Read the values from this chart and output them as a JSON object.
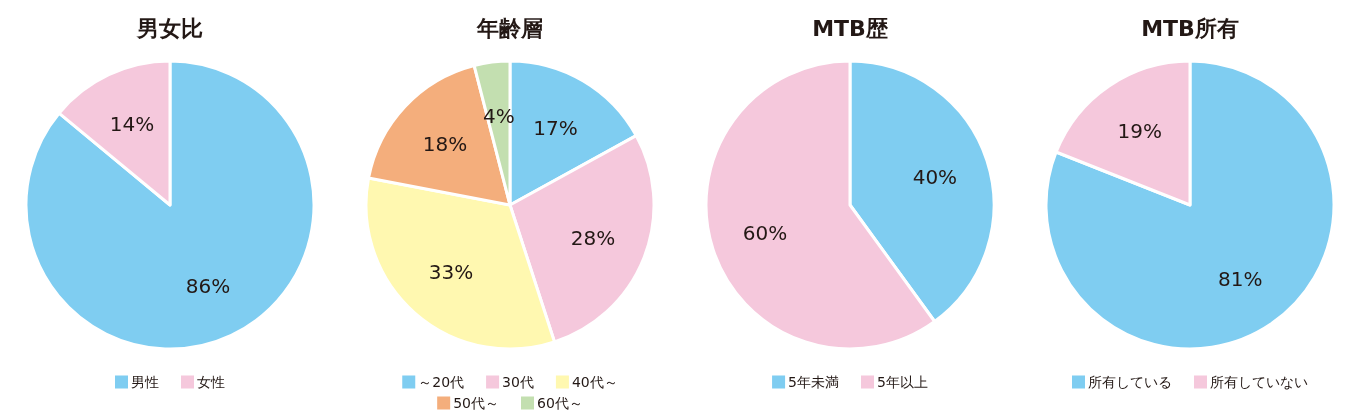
{
  "chart_data": [
    {
      "type": "pie",
      "title": "男女比",
      "categories": [
        "男性",
        "女性"
      ],
      "values": [
        86,
        14
      ],
      "value_labels": [
        "86%",
        "14%"
      ],
      "colors": [
        "#7fcdf1",
        "#f5c8dc"
      ],
      "legend": "bottom"
    },
    {
      "type": "pie",
      "title": "年齢層",
      "categories": [
        "～20代",
        "30代",
        "40代～",
        "50代～",
        "60代～"
      ],
      "values": [
        17,
        28,
        33,
        18,
        4
      ],
      "value_labels": [
        "17%",
        "28%",
        "33%",
        "18%",
        "4%"
      ],
      "colors": [
        "#7fcdf1",
        "#f5c8dc",
        "#fff8b0",
        "#f4ae7c",
        "#c3dfb0"
      ],
      "legend": "bottom"
    },
    {
      "type": "pie",
      "title": "MTB歴",
      "categories": [
        "5年未満",
        "5年以上"
      ],
      "values": [
        40,
        60
      ],
      "value_labels": [
        "40%",
        "60%"
      ],
      "colors": [
        "#7fcdf1",
        "#f5c8dc"
      ],
      "legend": "bottom"
    },
    {
      "type": "pie",
      "title": "MTB所有",
      "categories": [
        "所有している",
        "所有していない"
      ],
      "values": [
        81,
        19
      ],
      "value_labels": [
        "81%",
        "19%"
      ],
      "colors": [
        "#7fcdf1",
        "#f5c8dc"
      ],
      "legend": "bottom"
    }
  ]
}
